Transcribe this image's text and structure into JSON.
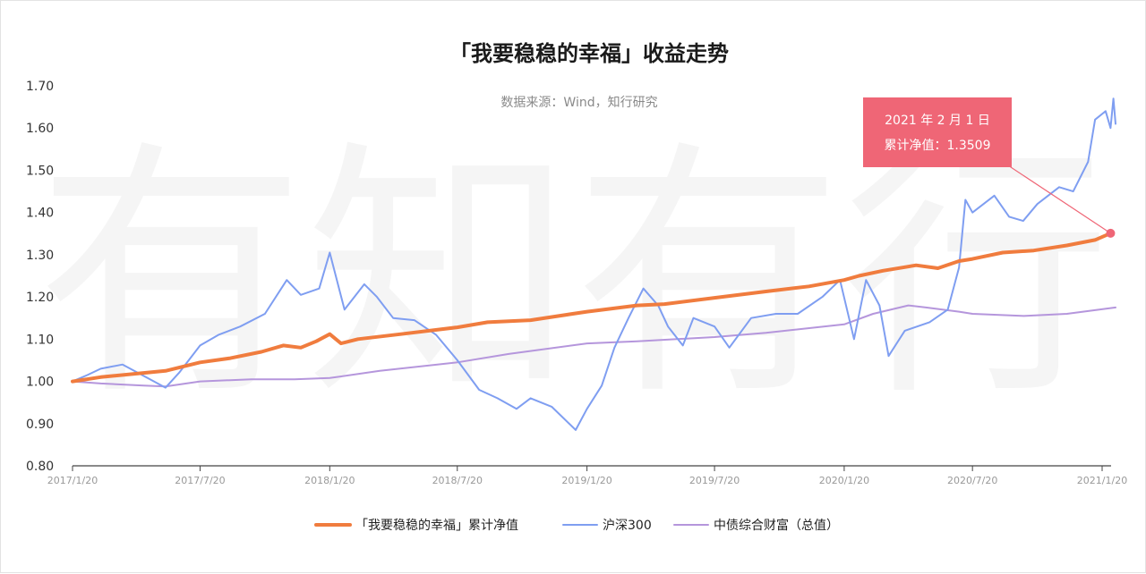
{
  "chart_data": {
    "type": "line",
    "title": "「我要稳稳的幸福」收益走势",
    "subtitle": "数据来源：Wind，知行研究",
    "watermark": "有知有行",
    "x_tick_labels": [
      "2017/1/20",
      "2017/7/20",
      "2018/1/20",
      "2018/7/20",
      "2019/1/20",
      "2019/7/20",
      "2020/1/20",
      "2020/7/20",
      "2021/1/20"
    ],
    "x_range": [
      "2017-01-20",
      "2021-02-08"
    ],
    "ylim": [
      0.8,
      1.7
    ],
    "y_ticks": [
      0.8,
      0.9,
      1.0,
      1.1,
      1.2,
      1.3,
      1.4,
      1.5,
      1.6,
      1.7
    ],
    "y_tick_labels": [
      "0.80",
      "0.90",
      "1.00",
      "1.10",
      "1.20",
      "1.30",
      "1.40",
      "1.50",
      "1.60",
      "1.70"
    ],
    "legend_position": "bottom",
    "series": [
      {
        "name": "「我要稳稳的幸福」累计净值",
        "color": "#F07C3E",
        "points": [
          [
            "2017-01-20",
            1.0
          ],
          [
            "2017-03-01",
            1.01
          ],
          [
            "2017-05-01",
            1.02
          ],
          [
            "2017-06-01",
            1.025
          ],
          [
            "2017-07-20",
            1.045
          ],
          [
            "2017-09-01",
            1.055
          ],
          [
            "2017-10-15",
            1.07
          ],
          [
            "2017-11-15",
            1.085
          ],
          [
            "2017-12-10",
            1.08
          ],
          [
            "2018-01-01",
            1.095
          ],
          [
            "2018-01-20",
            1.112
          ],
          [
            "2018-02-05",
            1.09
          ],
          [
            "2018-03-01",
            1.1
          ],
          [
            "2018-05-01",
            1.112
          ],
          [
            "2018-07-20",
            1.128
          ],
          [
            "2018-09-01",
            1.14
          ],
          [
            "2018-11-01",
            1.145
          ],
          [
            "2019-01-20",
            1.165
          ],
          [
            "2019-04-01",
            1.18
          ],
          [
            "2019-05-10",
            1.183
          ],
          [
            "2019-07-20",
            1.198
          ],
          [
            "2019-10-01",
            1.213
          ],
          [
            "2019-12-01",
            1.225
          ],
          [
            "2020-01-20",
            1.24
          ],
          [
            "2020-02-10",
            1.25
          ],
          [
            "2020-03-15",
            1.262
          ],
          [
            "2020-05-01",
            1.275
          ],
          [
            "2020-06-01",
            1.268
          ],
          [
            "2020-07-01",
            1.285
          ],
          [
            "2020-07-20",
            1.29
          ],
          [
            "2020-09-01",
            1.305
          ],
          [
            "2020-10-15",
            1.31
          ],
          [
            "2020-12-01",
            1.322
          ],
          [
            "2021-01-10",
            1.335
          ],
          [
            "2021-02-01",
            1.3509
          ]
        ]
      },
      {
        "name": "沪深300",
        "color": "#7F9EF1",
        "points": [
          [
            "2017-01-20",
            1.0
          ],
          [
            "2017-02-10",
            1.015
          ],
          [
            "2017-03-01",
            1.03
          ],
          [
            "2017-04-01",
            1.04
          ],
          [
            "2017-05-10",
            1.005
          ],
          [
            "2017-06-01",
            0.985
          ],
          [
            "2017-06-20",
            1.02
          ],
          [
            "2017-07-20",
            1.085
          ],
          [
            "2017-08-15",
            1.11
          ],
          [
            "2017-09-15",
            1.13
          ],
          [
            "2017-10-20",
            1.16
          ],
          [
            "2017-11-20",
            1.24
          ],
          [
            "2017-12-10",
            1.205
          ],
          [
            "2018-01-05",
            1.22
          ],
          [
            "2018-01-20",
            1.305
          ],
          [
            "2018-02-10",
            1.17
          ],
          [
            "2018-03-10",
            1.23
          ],
          [
            "2018-03-28",
            1.2
          ],
          [
            "2018-04-20",
            1.15
          ],
          [
            "2018-05-20",
            1.145
          ],
          [
            "2018-06-20",
            1.11
          ],
          [
            "2018-07-20",
            1.05
          ],
          [
            "2018-08-20",
            0.98
          ],
          [
            "2018-09-15",
            0.96
          ],
          [
            "2018-10-12",
            0.935
          ],
          [
            "2018-11-01",
            0.96
          ],
          [
            "2018-12-01",
            0.94
          ],
          [
            "2019-01-04",
            0.885
          ],
          [
            "2019-01-20",
            0.935
          ],
          [
            "2019-02-10",
            0.99
          ],
          [
            "2019-02-28",
            1.08
          ],
          [
            "2019-03-20",
            1.15
          ],
          [
            "2019-04-10",
            1.22
          ],
          [
            "2019-05-01",
            1.18
          ],
          [
            "2019-05-15",
            1.13
          ],
          [
            "2019-06-05",
            1.085
          ],
          [
            "2019-06-20",
            1.15
          ],
          [
            "2019-07-20",
            1.13
          ],
          [
            "2019-08-10",
            1.08
          ],
          [
            "2019-09-10",
            1.15
          ],
          [
            "2019-10-15",
            1.16
          ],
          [
            "2019-11-15",
            1.16
          ],
          [
            "2019-12-20",
            1.2
          ],
          [
            "2020-01-14",
            1.24
          ],
          [
            "2020-02-03",
            1.1
          ],
          [
            "2020-02-20",
            1.24
          ],
          [
            "2020-03-10",
            1.18
          ],
          [
            "2020-03-23",
            1.06
          ],
          [
            "2020-04-15",
            1.12
          ],
          [
            "2020-05-20",
            1.14
          ],
          [
            "2020-06-15",
            1.17
          ],
          [
            "2020-07-01",
            1.27
          ],
          [
            "2020-07-10",
            1.43
          ],
          [
            "2020-07-20",
            1.4
          ],
          [
            "2020-08-20",
            1.44
          ],
          [
            "2020-09-10",
            1.39
          ],
          [
            "2020-09-30",
            1.38
          ],
          [
            "2020-10-20",
            1.42
          ],
          [
            "2020-11-20",
            1.46
          ],
          [
            "2020-12-10",
            1.45
          ],
          [
            "2020-12-31",
            1.52
          ],
          [
            "2021-01-10",
            1.62
          ],
          [
            "2021-01-25",
            1.64
          ],
          [
            "2021-02-01",
            1.6
          ],
          [
            "2021-02-05",
            1.67
          ],
          [
            "2021-02-08",
            1.61
          ]
        ]
      },
      {
        "name": "中债综合财富（总值）",
        "color": "#B596DC",
        "points": [
          [
            "2017-01-20",
            1.0
          ],
          [
            "2017-03-01",
            0.995
          ],
          [
            "2017-05-01",
            0.99
          ],
          [
            "2017-06-01",
            0.988
          ],
          [
            "2017-07-20",
            1.0
          ],
          [
            "2017-10-01",
            1.005
          ],
          [
            "2017-12-01",
            1.005
          ],
          [
            "2018-01-20",
            1.008
          ],
          [
            "2018-04-01",
            1.025
          ],
          [
            "2018-07-20",
            1.045
          ],
          [
            "2018-10-01",
            1.065
          ],
          [
            "2019-01-20",
            1.09
          ],
          [
            "2019-04-01",
            1.095
          ],
          [
            "2019-07-20",
            1.105
          ],
          [
            "2019-10-01",
            1.115
          ],
          [
            "2020-01-20",
            1.135
          ],
          [
            "2020-03-01",
            1.16
          ],
          [
            "2020-04-20",
            1.18
          ],
          [
            "2020-05-15",
            1.175
          ],
          [
            "2020-07-01",
            1.165
          ],
          [
            "2020-07-20",
            1.16
          ],
          [
            "2020-10-01",
            1.155
          ],
          [
            "2020-12-01",
            1.16
          ],
          [
            "2021-02-08",
            1.175
          ]
        ]
      }
    ],
    "annotation": {
      "line1": "2021 年 2 月 1  日",
      "line2": "累计净值：1.3509",
      "date": "2021-02-01",
      "value": 1.3509,
      "color": "#EF6676"
    }
  }
}
